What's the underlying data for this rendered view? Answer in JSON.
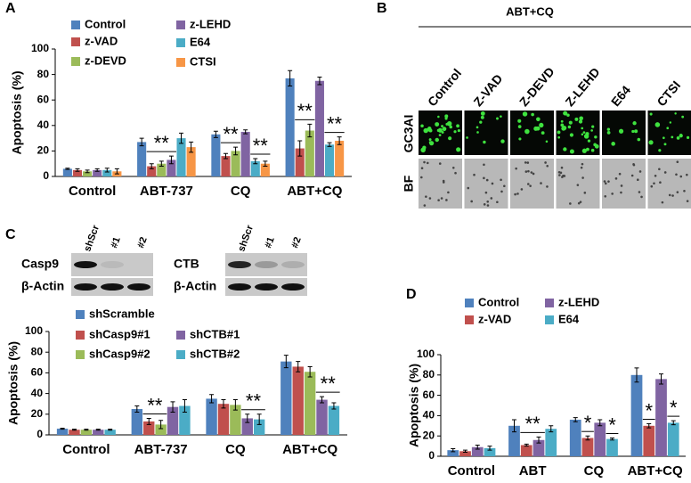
{
  "panel_labels": [
    "A",
    "B",
    "C",
    "D"
  ],
  "images": {
    "title": "ABT+CQ",
    "columns": [
      "Control",
      "Z-VAD",
      "Z-DEVD",
      "Z-LEHD",
      "E64",
      "CTSI"
    ],
    "rows": [
      "GC3AI",
      "BF"
    ]
  },
  "blots": [
    {
      "lanes": [
        "shScr",
        "#1",
        "#2"
      ],
      "rows": [
        "Casp9",
        "β-Actin"
      ]
    },
    {
      "lanes": [
        "shScr",
        "#1",
        "#2"
      ],
      "rows": [
        "CTB",
        "β-Actin"
      ]
    }
  ],
  "chart_data": [
    {
      "type": "bar",
      "ylabel": "Apoptosis (%)",
      "categories": [
        "Control",
        "ABT-737",
        "CQ",
        "ABT+CQ"
      ],
      "series": [
        {
          "name": "Control",
          "color": "#4f81bd",
          "values": [
            6,
            27,
            33,
            77
          ],
          "errors": [
            0.5,
            3,
            2.5,
            6
          ]
        },
        {
          "name": "z-VAD",
          "color": "#c0504d",
          "values": [
            5,
            8,
            16,
            22
          ],
          "errors": [
            1,
            2,
            2,
            6
          ]
        },
        {
          "name": "z-DEVD",
          "color": "#9bbb59",
          "values": [
            4,
            10,
            20,
            36
          ],
          "errors": [
            1,
            2,
            3,
            5
          ]
        },
        {
          "name": "z-LEHD",
          "color": "#8064a2",
          "values": [
            5,
            13,
            35,
            75
          ],
          "errors": [
            1,
            3,
            1.5,
            3
          ]
        },
        {
          "name": "E64",
          "color": "#4bacc6",
          "values": [
            5,
            30,
            12,
            25
          ],
          "errors": [
            1.5,
            4,
            2,
            1.5
          ]
        },
        {
          "name": "CTSI",
          "color": "#f79646",
          "values": [
            4,
            23,
            10,
            28
          ],
          "errors": [
            2,
            4,
            2,
            3
          ]
        }
      ],
      "ylim": [
        0,
        100
      ],
      "yticks": [
        0,
        20,
        40,
        60,
        80,
        100
      ],
      "annotations": [
        "**",
        "**",
        "**",
        "**",
        "**"
      ]
    },
    {
      "type": "bar",
      "ylabel": "Apoptosis (%)",
      "categories": [
        "Control",
        "ABT-737",
        "CQ",
        "ABT+CQ"
      ],
      "series": [
        {
          "name": "shScramble",
          "color": "#4f81bd",
          "values": [
            6,
            25,
            35,
            71
          ],
          "errors": [
            0.5,
            3,
            4,
            6
          ]
        },
        {
          "name": "shCasp9#1",
          "color": "#c0504d",
          "values": [
            5,
            13,
            30,
            66
          ],
          "errors": [
            0.5,
            3,
            4,
            5
          ]
        },
        {
          "name": "shCasp9#2",
          "color": "#9bbb59",
          "values": [
            5,
            10,
            29,
            61
          ],
          "errors": [
            0.5,
            4,
            5,
            5
          ]
        },
        {
          "name": "shCTB#1",
          "color": "#8064a2",
          "values": [
            5,
            27,
            16,
            34
          ],
          "errors": [
            0.5,
            5,
            4,
            3
          ]
        },
        {
          "name": "shCTB#2",
          "color": "#4bacc6",
          "values": [
            5,
            28,
            15,
            28
          ],
          "errors": [
            0.5,
            6,
            5,
            3
          ]
        }
      ],
      "ylim": [
        0,
        100
      ],
      "yticks": [
        0,
        20,
        40,
        60,
        80,
        100
      ],
      "annotations": [
        "**",
        "**",
        "**"
      ]
    },
    {
      "type": "bar",
      "ylabel": "Apoptosis (%)",
      "categories": [
        "Control",
        "ABT",
        "CQ",
        "ABT+CQ"
      ],
      "series": [
        {
          "name": "Control",
          "color": "#4f81bd",
          "values": [
            6,
            30,
            36,
            80
          ],
          "errors": [
            1.5,
            6,
            2,
            7
          ]
        },
        {
          "name": "z-VAD",
          "color": "#c0504d",
          "values": [
            5,
            11,
            18,
            30
          ],
          "errors": [
            1,
            1,
            2,
            2
          ]
        },
        {
          "name": "z-LEHD",
          "color": "#8064a2",
          "values": [
            9,
            16,
            33,
            76
          ],
          "errors": [
            2,
            3,
            3,
            5
          ]
        },
        {
          "name": "E64",
          "color": "#4bacc6",
          "values": [
            8,
            27,
            17,
            33
          ],
          "errors": [
            2,
            3,
            1,
            2
          ]
        }
      ],
      "ylim": [
        0,
        100
      ],
      "yticks": [
        0,
        20,
        40,
        60,
        80,
        100
      ],
      "annotations": [
        "**",
        "*",
        "*",
        "*",
        "*"
      ]
    }
  ]
}
